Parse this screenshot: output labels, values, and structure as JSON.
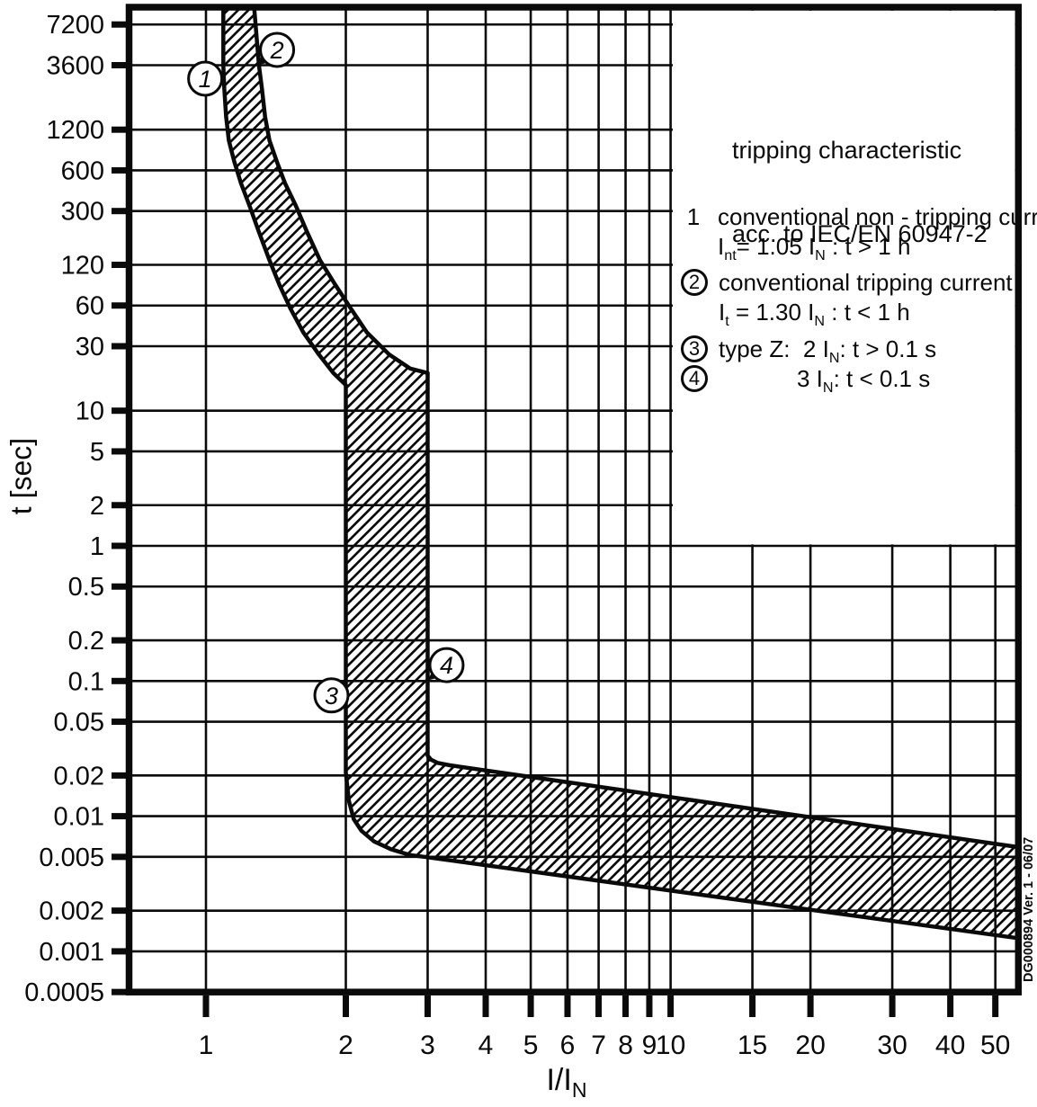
{
  "figure": {
    "side_note": "DG000894 Ver. 1 - 06/07"
  },
  "legend": {
    "title_line1": "tripping characteristic",
    "title_line2": "acc. to IEC/EN 60947-2",
    "items": [
      {
        "num": "1",
        "circled": false,
        "text": "conventional non - tripping current",
        "formula": [
          "I",
          "nt",
          "= 1.05 I",
          "N",
          " : t > 1 h"
        ]
      },
      {
        "num": "2",
        "circled": true,
        "text": "conventional tripping current",
        "formula": [
          "I",
          "t",
          " = 1.30 I",
          "N",
          " : t < 1 h"
        ]
      },
      {
        "num": "3",
        "circled": true,
        "formula": [
          "type Z:  2 I",
          "N",
          ": t > 0.1 s"
        ]
      },
      {
        "num": "4",
        "circled": true,
        "formula": [
          "3 I",
          "N",
          ": t < 0.1 s"
        ]
      }
    ]
  },
  "axes": {
    "y_title": "t [sec]",
    "x_title_parts": [
      "I/I",
      "N"
    ]
  },
  "chart_data": {
    "type": "area",
    "title": "tripping characteristic acc. to IEC/EN 60947-2",
    "xlabel": "I/I_N",
    "ylabel": "t [sec]",
    "x_axis": {
      "scale": "log",
      "ticks": [
        1,
        2,
        3,
        4,
        5,
        6,
        7,
        8,
        9,
        10,
        15,
        20,
        30,
        40,
        50
      ]
    },
    "y_axis": {
      "scale": "log",
      "ticks": [
        "7200",
        "3600",
        "1200",
        "600",
        "300",
        "120",
        "60",
        "30",
        "10",
        "5",
        "2",
        "1",
        "0.5",
        "0.2",
        "0.1",
        "0.05",
        "0.02",
        "0.01",
        "0.005",
        "0.002",
        "0.001",
        "0.0005"
      ]
    },
    "band": {
      "description": "hatched tolerance band between minimum and maximum tripping boundaries, type Z (trip range 2-3 In)",
      "min_boundary": [
        [
          1.09,
          9600
        ],
        [
          1.09,
          3600
        ],
        [
          1.095,
          2400
        ],
        [
          1.105,
          1500
        ],
        [
          1.12,
          1000
        ],
        [
          1.15,
          700
        ],
        [
          1.19,
          480
        ],
        [
          1.24,
          330
        ],
        [
          1.3,
          210
        ],
        [
          1.37,
          130
        ],
        [
          1.44,
          85
        ],
        [
          1.52,
          57
        ],
        [
          1.62,
          38
        ],
        [
          1.75,
          26
        ],
        [
          1.88,
          19
        ],
        [
          2.0,
          15.5
        ],
        [
          2.0,
          0.021
        ],
        [
          2.03,
          0.013
        ],
        [
          2.08,
          0.0095
        ],
        [
          2.16,
          0.0078
        ],
        [
          2.3,
          0.0065
        ],
        [
          2.5,
          0.0057
        ],
        [
          2.75,
          0.00515
        ],
        [
          2.95,
          0.005
        ],
        [
          56,
          0.00125
        ]
      ],
      "max_boundary": [
        [
          1.27,
          9600
        ],
        [
          1.3,
          3600
        ],
        [
          1.32,
          2400
        ],
        [
          1.34,
          1500
        ],
        [
          1.37,
          1000
        ],
        [
          1.42,
          700
        ],
        [
          1.48,
          480
        ],
        [
          1.56,
          330
        ],
        [
          1.65,
          210
        ],
        [
          1.76,
          130
        ],
        [
          1.9,
          85
        ],
        [
          2.05,
          57
        ],
        [
          2.22,
          38
        ],
        [
          2.48,
          26
        ],
        [
          2.75,
          20.5
        ],
        [
          3.0,
          19
        ],
        [
          3.0,
          0.028
        ],
        [
          3.05,
          0.0262
        ],
        [
          3.15,
          0.0248
        ],
        [
          3.35,
          0.0238
        ],
        [
          56,
          0.0059
        ]
      ]
    },
    "markers": [
      {
        "label": "1",
        "i": 1.065,
        "t": 3600,
        "label_offset": [
          -15,
          15
        ]
      },
      {
        "label": "2",
        "i": 1.284,
        "t": 3600,
        "label_offset": [
          23,
          -17
        ]
      },
      {
        "label": "3",
        "i": 2.0,
        "t": 0.1,
        "label_offset": [
          -16,
          16
        ]
      },
      {
        "label": "4",
        "i": 3.0,
        "t": 0.101,
        "label_offset": [
          21,
          -17
        ]
      }
    ]
  }
}
